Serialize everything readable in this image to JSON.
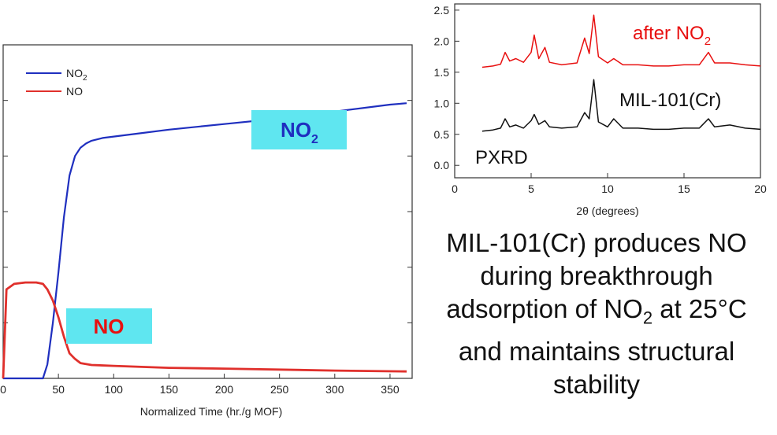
{
  "chart_data": [
    {
      "type": "line",
      "xlabel": "Normalized Time (hr./g MOF)",
      "ylabel": "",
      "xlim": [
        0,
        370
      ],
      "ylim": [
        0,
        1.2
      ],
      "x_ticks": [
        "0",
        "50",
        "100",
        "150",
        "200",
        "250",
        "300",
        "350"
      ],
      "legend_placement": "top-left",
      "series": [
        {
          "name": "NO₂",
          "color": "#1f2fbf",
          "x": [
            0,
            10,
            20,
            30,
            36,
            40,
            45,
            50,
            55,
            60,
            65,
            70,
            75,
            80,
            90,
            100,
            120,
            150,
            200,
            250,
            300,
            350,
            365
          ],
          "y": [
            0.0,
            0.0,
            0.0,
            0.0,
            0.0,
            0.05,
            0.2,
            0.38,
            0.58,
            0.73,
            0.8,
            0.83,
            0.845,
            0.855,
            0.865,
            0.87,
            0.88,
            0.895,
            0.915,
            0.935,
            0.96,
            0.985,
            0.99
          ]
        },
        {
          "name": "NO",
          "color": "#e0302c",
          "x": [
            0,
            3,
            10,
            20,
            30,
            36,
            40,
            45,
            50,
            55,
            60,
            65,
            70,
            80,
            100,
            150,
            200,
            300,
            365
          ],
          "y": [
            0.0,
            0.32,
            0.34,
            0.345,
            0.345,
            0.34,
            0.32,
            0.28,
            0.22,
            0.15,
            0.09,
            0.07,
            0.055,
            0.048,
            0.045,
            0.038,
            0.035,
            0.028,
            0.025
          ]
        }
      ],
      "annotations": [
        {
          "text": "NO",
          "sub": "2",
          "color": "#1f2fbf",
          "background": "#5fe6f0"
        },
        {
          "text": "NO",
          "sub": "",
          "color": "#e81010",
          "background": "#5fe6f0"
        }
      ]
    },
    {
      "type": "line",
      "title": "",
      "xlabel": "2θ (degrees)",
      "ylabel": "",
      "xlim": [
        0,
        20
      ],
      "ylim": [
        -0.2,
        2.6
      ],
      "x_ticks": [
        "0",
        "5",
        "10",
        "15",
        "20"
      ],
      "y_ticks": [
        "0.0",
        "0.5",
        "1.0",
        "1.5",
        "2.0",
        "2.5"
      ],
      "panel_label": "PXRD",
      "series": [
        {
          "name": "after NO₂",
          "color": "#e81010",
          "x": [
            1.8,
            2.5,
            3.0,
            3.3,
            3.6,
            4.0,
            4.5,
            5.0,
            5.2,
            5.5,
            5.9,
            6.2,
            7.0,
            8.0,
            8.5,
            8.8,
            9.1,
            9.4,
            10.0,
            10.4,
            11.0,
            12.0,
            13.0,
            14.0,
            15.0,
            16.0,
            16.6,
            17.0,
            18.0,
            19.0,
            20.0
          ],
          "y": [
            1.58,
            1.6,
            1.63,
            1.82,
            1.68,
            1.72,
            1.66,
            1.82,
            2.1,
            1.72,
            1.9,
            1.66,
            1.62,
            1.65,
            2.05,
            1.8,
            2.42,
            1.75,
            1.65,
            1.72,
            1.62,
            1.62,
            1.6,
            1.6,
            1.62,
            1.62,
            1.82,
            1.65,
            1.65,
            1.62,
            1.6
          ]
        },
        {
          "name": "MIL-101(Cr)",
          "color": "#111111",
          "x": [
            1.8,
            2.5,
            3.0,
            3.3,
            3.6,
            4.0,
            4.5,
            5.0,
            5.2,
            5.5,
            5.9,
            6.2,
            7.0,
            8.0,
            8.5,
            8.8,
            9.1,
            9.4,
            10.0,
            10.4,
            11.0,
            12.0,
            13.0,
            14.0,
            15.0,
            16.0,
            16.6,
            17.0,
            18.0,
            19.0,
            20.0
          ],
          "y": [
            0.55,
            0.57,
            0.6,
            0.75,
            0.62,
            0.65,
            0.6,
            0.72,
            0.82,
            0.66,
            0.72,
            0.62,
            0.6,
            0.62,
            0.85,
            0.75,
            1.38,
            0.7,
            0.62,
            0.75,
            0.6,
            0.6,
            0.58,
            0.58,
            0.6,
            0.6,
            0.75,
            0.62,
            0.65,
            0.6,
            0.58
          ]
        }
      ]
    }
  ],
  "caption": {
    "line1": "MIL-101(Cr) produces NO",
    "line2": "during breakthrough",
    "line3_pre": "adsorption of NO",
    "line3_sub": "2",
    "line3_post": " at 25°C",
    "line4": "and maintains structural",
    "line5": "stability"
  }
}
